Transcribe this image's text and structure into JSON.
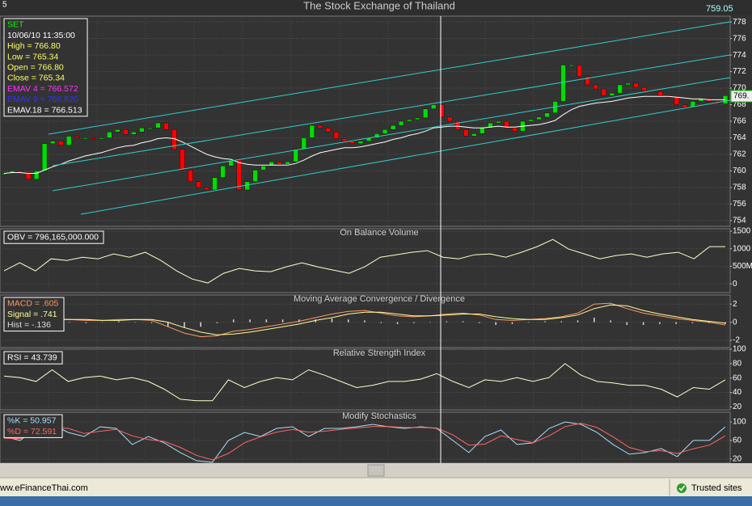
{
  "window": {
    "tab": "5",
    "status_url": "ww.eFinanceThai.com",
    "zone": "Trusted sites"
  },
  "chart_data": [
    {
      "type": "candlestick",
      "title": "The Stock Exchange of Thailand",
      "annotations": [
        "759.05",
        "769."
      ],
      "info": [
        {
          "text": "SET",
          "color": "#00ff00"
        },
        {
          "text": "10/06/10 11:35:00",
          "color": "#ffffff"
        },
        {
          "text": "High  = 766.80",
          "color": "#ffff66"
        },
        {
          "text": "Low  = 765.34",
          "color": "#ffff66"
        },
        {
          "text": "Open = 766.80",
          "color": "#ffff66"
        },
        {
          "text": "Close = 765.34",
          "color": "#ffff66"
        },
        {
          "text": "EMAV 4 = 766.572",
          "color": "#ff33ff"
        },
        {
          "text": "EMAV 9 = 766.820",
          "color": "#3333ff"
        },
        {
          "text": "EMAV.18 = 766.513",
          "color": "#ffffff"
        }
      ],
      "up_color": "#00dd00",
      "down_color": "#ff0000",
      "series": [
        {
          "values": [
            759.7,
            760.0,
            759.8,
            759.0,
            760.0,
            763.3,
            763.6,
            763.1,
            764.2,
            764.0,
            764.0,
            763.9,
            764.0,
            764.7,
            765.0,
            764.4,
            764.7,
            765.2,
            765.2,
            765.8,
            765.0,
            762.6,
            760.1,
            758.7,
            758.0,
            757.7,
            759.2,
            760.6,
            761.3,
            757.7,
            758.7,
            760.1,
            760.6,
            761.1,
            760.8,
            761.1,
            762.6,
            764.0,
            765.5,
            765.2,
            764.7,
            763.9,
            763.6,
            763.3,
            763.6,
            764.0,
            764.5,
            765.0,
            765.5,
            766.0,
            766.2,
            766.4,
            767.5,
            768.0,
            766.5,
            766.0,
            765.0,
            764.2,
            764.5,
            765.2,
            765.8,
            766.0,
            765.2,
            764.8,
            766.0,
            766.2,
            766.5,
            767.0,
            768.4,
            772.8,
            772.8,
            771.4,
            770.4,
            769.9,
            769.1,
            769.4,
            770.4,
            770.6,
            770.1,
            769.7,
            769.6,
            769.1,
            768.9,
            768.0,
            767.7,
            768.4,
            768.7,
            768.4,
            768.1,
            769.1
          ]
        },
        {
          "type": "line",
          "color": "#ffffff",
          "values": [
            759.7,
            759.8,
            759.8,
            759.7,
            759.7,
            760.1,
            760.5,
            760.8,
            761.2,
            761.5,
            761.8,
            762.0,
            762.2,
            762.5,
            762.8,
            763.0,
            763.1,
            763.4,
            763.6,
            763.9,
            764.0,
            763.9,
            763.5,
            763.0,
            762.5,
            762.0,
            761.7,
            761.5,
            761.4,
            761.0,
            760.8,
            760.7,
            760.7,
            760.7,
            760.7,
            760.7,
            760.9,
            761.3,
            761.8,
            762.2,
            762.4,
            762.6,
            762.8,
            762.8,
            762.9,
            763.1,
            763.3,
            763.5,
            763.8,
            764.0,
            764.3,
            764.5,
            764.8,
            765.2,
            765.3,
            765.4,
            765.4,
            765.3,
            765.2,
            765.2,
            765.3,
            765.4,
            765.3,
            765.3,
            765.4,
            765.5,
            765.6,
            765.8,
            766.1,
            766.8,
            767.4,
            767.8,
            768.0,
            768.2,
            768.3,
            768.4,
            768.6,
            768.8,
            768.9,
            769.0,
            769.0,
            769.0,
            769.0,
            768.9,
            768.8,
            768.7,
            768.7,
            768.6,
            768.6,
            768.6
          ]
        }
      ],
      "ylim": [
        753.3,
        778.7
      ],
      "yticks": [
        754,
        756,
        758,
        760,
        762,
        764,
        766,
        768,
        770,
        772,
        774,
        776,
        778
      ],
      "grid": true
    },
    {
      "type": "line",
      "title": "On Balance Volume",
      "info": [
        {
          "text": "OBV = 796,165,000.000",
          "color": "#ffffff"
        }
      ],
      "series": [
        {
          "type": "line",
          "color": "#ffffcc",
          "values": [
            369,
            599,
            369,
            714,
            668,
            760,
            714,
            853,
            760,
            899,
            668,
            369,
            138,
            23,
            300,
            438,
            369,
            346,
            484,
            599,
            484,
            392,
            300,
            484,
            760,
            829,
            899,
            945,
            760,
            714,
            829,
            853,
            760,
            899,
            1060,
            1267,
            991,
            853,
            714,
            806,
            853,
            760,
            853,
            899,
            714,
            1060,
            1060
          ]
        }
      ],
      "ylim": [
        -250,
        1570
      ],
      "yticks": [
        1500,
        1000,
        {
          "value": 500,
          "label": "500M"
        },
        0
      ],
      "grid": true
    },
    {
      "type": "line",
      "title": "Moving Average Convergence / Divergence",
      "info": [
        {
          "text": "MACD = .605",
          "color": "#ff9966"
        },
        {
          "text": "Signal = .741",
          "color": "#ffff99"
        },
        {
          "text": "Hist = -.136",
          "color": "#dddddd"
        }
      ],
      "series": [
        {
          "type": "bar",
          "color": "#dddddd",
          "values": [
            0.1,
            0.1,
            0.1,
            0.1,
            0.0,
            -0.1,
            0.0,
            0.1,
            0.0,
            -0.1,
            -0.5,
            -0.6,
            -0.5,
            -0.1,
            0.3,
            0.3,
            0.3,
            0.3,
            0.3,
            0.3,
            0.4,
            0.3,
            0.2,
            -0.1,
            -0.2,
            -0.1,
            0.0,
            0.1,
            0.1,
            -0.1,
            -0.3,
            -0.2,
            0.0,
            0.1,
            0.1,
            0.2,
            0.5,
            0.2,
            -0.3,
            -0.3,
            -0.2,
            -0.2,
            -0.1,
            -0.1,
            -0.2
          ]
        },
        {
          "type": "line",
          "color": "#ff9966",
          "values": [
            0.2,
            0.3,
            0.4,
            0.4,
            0.3,
            0.2,
            0.2,
            0.3,
            0.3,
            0.2,
            -0.5,
            -1.2,
            -1.6,
            -1.5,
            -1.0,
            -0.8,
            -0.5,
            -0.2,
            0.1,
            0.5,
            0.9,
            1.2,
            1.3,
            1.0,
            0.7,
            0.6,
            0.7,
            0.9,
            1.0,
            0.8,
            0.3,
            0.2,
            0.3,
            0.4,
            0.6,
            1.0,
            2.0,
            2.1,
            1.5,
            1.0,
            0.7,
            0.4,
            0.2,
            0.0,
            -0.3
          ]
        },
        {
          "type": "line",
          "color": "#ffff99",
          "values": [
            0.1,
            0.2,
            0.3,
            0.3,
            0.3,
            0.3,
            0.2,
            0.2,
            0.3,
            0.3,
            0.0,
            -0.6,
            -1.1,
            -1.4,
            -1.3,
            -1.1,
            -0.8,
            -0.5,
            -0.2,
            0.2,
            0.5,
            0.9,
            1.1,
            1.1,
            0.9,
            0.7,
            0.7,
            0.8,
            0.9,
            0.9,
            0.6,
            0.4,
            0.3,
            0.3,
            0.5,
            0.8,
            1.5,
            1.9,
            1.8,
            1.3,
            0.9,
            0.6,
            0.3,
            0.1,
            -0.1
          ]
        }
      ],
      "ylim": [
        -2.8,
        3
      ],
      "yticks": [
        2,
        0,
        -2
      ],
      "grid": true
    },
    {
      "type": "line",
      "title": "Relative Strength Index",
      "info": [
        {
          "text": "RSI = 43.739",
          "color": "#ffffff"
        }
      ],
      "series": [
        {
          "type": "line",
          "color": "#ffffcc",
          "values": [
            62.8,
            60.7,
            55.3,
            71.4,
            55.3,
            60.7,
            62.8,
            57.5,
            60.7,
            55.3,
            44.6,
            30.7,
            28.6,
            28.6,
            57.5,
            46.8,
            55.3,
            60.7,
            57.5,
            71.4,
            63.9,
            55.3,
            46.8,
            50.0,
            55.3,
            55.3,
            58.6,
            66.1,
            55.3,
            46.8,
            57.5,
            55.3,
            60.7,
            55.3,
            60.7,
            80.0,
            63.9,
            55.3,
            53.2,
            50.0,
            50.0,
            44.6,
            33.9,
            46.8,
            44.6,
            57.5
          ]
        }
      ],
      "ylim": [
        16,
        100
      ],
      "yticks": [
        100,
        80,
        60,
        40,
        20
      ],
      "grid": true
    },
    {
      "type": "line",
      "title": "Modify Stochastics",
      "info": [
        {
          "text": "%K = 50.957",
          "color": "#aaddff"
        },
        {
          "text": "%D = 72.591",
          "color": "#ff6666"
        }
      ],
      "series": [
        {
          "type": "line",
          "color": "#aaddff",
          "values": [
            68.7,
            60,
            86.1,
            94.8,
            77.4,
            68.7,
            89.6,
            86.1,
            51.3,
            68.7,
            54.8,
            33.9,
            16.5,
            13,
            60,
            77.4,
            68.7,
            86.1,
            89.6,
            68.7,
            86.1,
            86.1,
            89.6,
            94.8,
            89.6,
            86.1,
            89.6,
            86.1,
            60,
            33.9,
            68.7,
            82.6,
            51.3,
            54.8,
            86.1,
            100,
            94.8,
            77.4,
            51.3,
            30.4,
            33.9,
            42.6,
            25.2,
            60,
            60,
            89.6
          ]
        },
        {
          "type": "line",
          "color": "#ff6666",
          "values": [
            65,
            64,
            75,
            88,
            86,
            75,
            80,
            84,
            70,
            62,
            58,
            45,
            28,
            18,
            32,
            55,
            68,
            78,
            84,
            78,
            80,
            84,
            87,
            90,
            90,
            88,
            88,
            87,
            72,
            50,
            52,
            70,
            62,
            55,
            70,
            90,
            97,
            88,
            68,
            45,
            36,
            38,
            32,
            42,
            50,
            70
          ]
        }
      ],
      "ylim": [
        11,
        121
      ],
      "yticks": [
        100,
        60,
        20
      ],
      "grid": true
    }
  ]
}
